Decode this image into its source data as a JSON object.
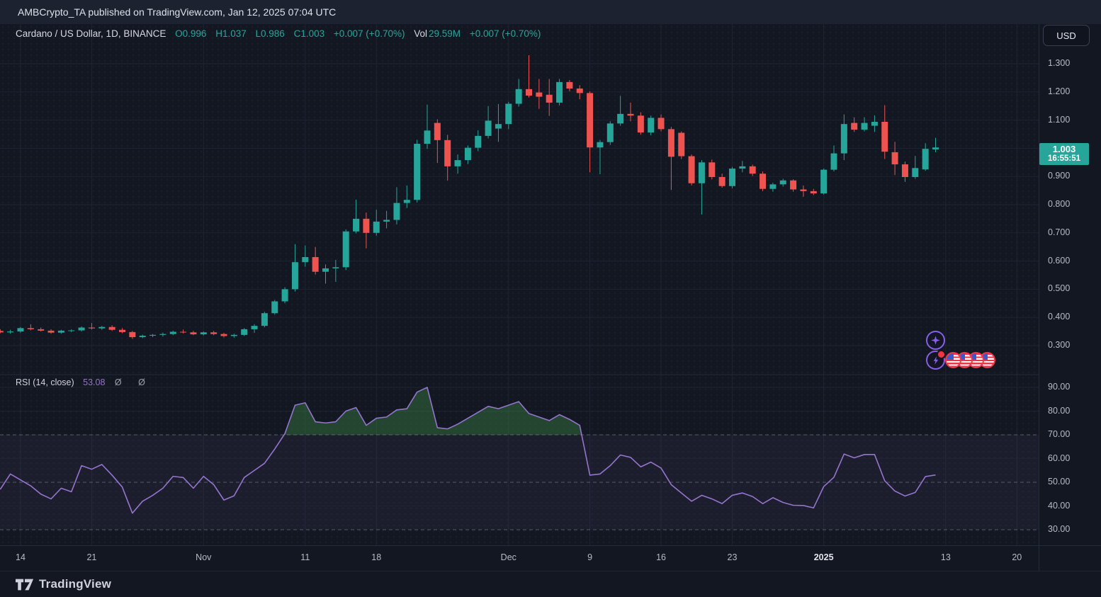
{
  "attribution": {
    "text": "AMBCrypto_TA published on TradingView.com, Jan 12, 2025 07:04 UTC"
  },
  "legend": {
    "symbol": "Cardano / US Dollar, 1D, BINANCE",
    "o_label": "O",
    "o": "0.996",
    "h_label": "H",
    "h": "1.037",
    "l_label": "L",
    "l": "0.986",
    "c_label": "C",
    "c": "1.003",
    "change": "+0.007 (+0.70%)",
    "vol_label": "Vol",
    "vol": "29.59M",
    "change2": "+0.007 (+0.70%)"
  },
  "price_axis": {
    "currency": "USD",
    "current_price": "1.003",
    "countdown": "16:55:51"
  },
  "rsi_legend": {
    "title": "RSI (14, close)",
    "value": "53.08",
    "markers": "Ø Ø"
  },
  "footer": {
    "brand": "TradingView"
  },
  "icons": {
    "pattern_button": "sparkle-icon",
    "events_button": "lightning-bolt-icon with red notification dot",
    "event_flags": "us-flag-icon"
  },
  "event_icons": {
    "count": 4,
    "type": "us-flag"
  },
  "colors": {
    "background": "#131722",
    "attribution_background": "#1c2230",
    "up": "#26a69a",
    "down": "#ef5350",
    "rsi_line": "#9575cd",
    "rsi_overbought_fill": "rgba(76,175,80,0.30)",
    "rsi_band_fill": "rgba(149,117,205,0.07)",
    "grid": "#1e2433",
    "dashed_level": "#8a8e9b",
    "axis_text": "#b7bbc7",
    "badge_background": "#26a69a",
    "accent_purple": "#8660e9",
    "event_ring_red": "#f23645"
  },
  "chart_data": [
    {
      "type": "candlestick",
      "title": "Cardano / US Dollar, 1D, BINANCE",
      "exchange": "BINANCE",
      "interval": "1D",
      "ylim": [
        0.28,
        1.35
      ],
      "grid": true,
      "price_ticks": [
        "1.300",
        "1.200",
        "1.100",
        "1.000",
        "0.900",
        "0.800",
        "0.700",
        "0.600",
        "0.500",
        "0.400",
        "0.300"
      ],
      "time_ticks": [
        {
          "label": "14",
          "i": 2
        },
        {
          "label": "21",
          "i": 9
        },
        {
          "label": "Nov",
          "i": 20
        },
        {
          "label": "11",
          "i": 30
        },
        {
          "label": "18",
          "i": 37
        },
        {
          "label": "Dec",
          "i": 50
        },
        {
          "label": "9",
          "i": 58
        },
        {
          "label": "16",
          "i": 65
        },
        {
          "label": "23",
          "i": 72
        },
        {
          "label": "2025",
          "i": 81,
          "bold": true
        },
        {
          "label": "13",
          "i": 93
        },
        {
          "label": "20",
          "i": 100
        }
      ],
      "candles": [
        [
          "Oct 12",
          0.352,
          0.358,
          0.344,
          0.347
        ],
        [
          "Oct 13",
          0.347,
          0.356,
          0.342,
          0.35
        ],
        [
          "Oct 14",
          0.35,
          0.366,
          0.346,
          0.362
        ],
        [
          "Oct 15",
          0.362,
          0.376,
          0.354,
          0.358
        ],
        [
          "Oct 16",
          0.358,
          0.364,
          0.35,
          0.353
        ],
        [
          "Oct 17",
          0.353,
          0.358,
          0.342,
          0.346
        ],
        [
          "Oct 18",
          0.346,
          0.356,
          0.342,
          0.353
        ],
        [
          "Oct 19",
          0.353,
          0.358,
          0.348,
          0.354
        ],
        [
          "Oct 20",
          0.354,
          0.368,
          0.35,
          0.364
        ],
        [
          "Oct 21",
          0.364,
          0.38,
          0.357,
          0.361
        ],
        [
          "Oct 22",
          0.361,
          0.37,
          0.356,
          0.366
        ],
        [
          "Oct 23",
          0.366,
          0.372,
          0.352,
          0.356
        ],
        [
          "Oct 24",
          0.356,
          0.362,
          0.344,
          0.348
        ],
        [
          "Oct 25",
          0.348,
          0.352,
          0.324,
          0.33
        ],
        [
          "Oct 26",
          0.33,
          0.339,
          0.326,
          0.335
        ],
        [
          "Oct 27",
          0.335,
          0.341,
          0.33,
          0.338
        ],
        [
          "Oct 28",
          0.338,
          0.346,
          0.332,
          0.341
        ],
        [
          "Oct 29",
          0.341,
          0.353,
          0.337,
          0.349
        ],
        [
          "Oct 30",
          0.349,
          0.357,
          0.343,
          0.347
        ],
        [
          "Oct 31",
          0.347,
          0.352,
          0.337,
          0.34
        ],
        [
          "Nov 1",
          0.34,
          0.35,
          0.336,
          0.347
        ],
        [
          "Nov 2",
          0.347,
          0.352,
          0.337,
          0.341
        ],
        [
          "Nov 3",
          0.341,
          0.345,
          0.329,
          0.334
        ],
        [
          "Nov 4",
          0.334,
          0.342,
          0.328,
          0.338
        ],
        [
          "Nov 5",
          0.338,
          0.362,
          0.334,
          0.358
        ],
        [
          "Nov 6",
          0.358,
          0.376,
          0.345,
          0.37
        ],
        [
          "Nov 7",
          0.37,
          0.42,
          0.365,
          0.415
        ],
        [
          "Nov 8",
          0.415,
          0.462,
          0.41,
          0.457
        ],
        [
          "Nov 9",
          0.457,
          0.507,
          0.45,
          0.5
        ],
        [
          "Nov 10",
          0.5,
          0.66,
          0.492,
          0.596
        ],
        [
          "Nov 11",
          0.596,
          0.655,
          0.58,
          0.614
        ],
        [
          "Nov 12",
          0.614,
          0.65,
          0.552,
          0.562
        ],
        [
          "Nov 13",
          0.562,
          0.588,
          0.52,
          0.574
        ],
        [
          "Nov 14",
          0.574,
          0.604,
          0.526,
          0.578
        ],
        [
          "Nov 15",
          0.578,
          0.712,
          0.568,
          0.705
        ],
        [
          "Nov 16",
          0.705,
          0.818,
          0.698,
          0.75
        ],
        [
          "Nov 17",
          0.75,
          0.772,
          0.645,
          0.7
        ],
        [
          "Nov 18",
          0.7,
          0.782,
          0.69,
          0.74
        ],
        [
          "Nov 19",
          0.74,
          0.778,
          0.716,
          0.746
        ],
        [
          "Nov 20",
          0.746,
          0.862,
          0.73,
          0.806
        ],
        [
          "Nov 21",
          0.806,
          0.868,
          0.788,
          0.817
        ],
        [
          "Nov 22",
          0.817,
          1.03,
          0.808,
          1.016
        ],
        [
          "Nov 23",
          1.016,
          1.155,
          0.998,
          1.063
        ],
        [
          "Nov 24",
          1.09,
          1.103,
          0.948,
          1.029
        ],
        [
          "Nov 25",
          1.029,
          1.048,
          0.885,
          0.936
        ],
        [
          "Nov 26",
          0.936,
          0.978,
          0.91,
          0.958
        ],
        [
          "Nov 27",
          0.958,
          1.01,
          0.944,
          1.002
        ],
        [
          "Nov 28",
          1.002,
          1.064,
          0.99,
          1.044
        ],
        [
          "Nov 29",
          1.044,
          1.15,
          1.035,
          1.098
        ],
        [
          "Nov 30",
          1.07,
          1.157,
          1.023,
          1.086
        ],
        [
          "Dec 1",
          1.086,
          1.165,
          1.068,
          1.158
        ],
        [
          "Dec 2",
          1.158,
          1.246,
          1.148,
          1.21
        ],
        [
          "Dec 3",
          1.21,
          1.33,
          1.18,
          1.187
        ],
        [
          "Dec 4",
          1.198,
          1.246,
          1.14,
          1.183
        ],
        [
          "Dec 5",
          1.19,
          1.246,
          1.115,
          1.162
        ],
        [
          "Dec 6",
          1.162,
          1.246,
          1.152,
          1.235
        ],
        [
          "Dec 7",
          1.235,
          1.242,
          1.202,
          1.212
        ],
        [
          "Dec 8",
          1.212,
          1.224,
          1.174,
          1.196
        ],
        [
          "Dec 9",
          1.196,
          1.202,
          0.915,
          1.003
        ],
        [
          "Dec 10",
          1.003,
          1.03,
          0.908,
          1.022
        ],
        [
          "Dec 11",
          1.022,
          1.096,
          1.012,
          1.088
        ],
        [
          "Dec 12",
          1.088,
          1.186,
          1.08,
          1.122
        ],
        [
          "Dec 13",
          1.122,
          1.162,
          1.096,
          1.116
        ],
        [
          "Dec 14",
          1.116,
          1.128,
          1.048,
          1.056
        ],
        [
          "Dec 15",
          1.056,
          1.116,
          1.046,
          1.108
        ],
        [
          "Dec 16",
          1.108,
          1.12,
          1.06,
          1.068
        ],
        [
          "Dec 17",
          1.068,
          1.076,
          0.852,
          0.97
        ],
        [
          "Dec 18",
          1.055,
          1.06,
          0.962,
          0.972
        ],
        [
          "Dec 19",
          0.972,
          0.978,
          0.868,
          0.876
        ],
        [
          "Dec 20",
          0.876,
          0.958,
          0.765,
          0.95
        ],
        [
          "Dec 21",
          0.95,
          0.96,
          0.89,
          0.898
        ],
        [
          "Dec 22",
          0.898,
          0.91,
          0.86,
          0.866
        ],
        [
          "Dec 23",
          0.866,
          0.934,
          0.858,
          0.928
        ],
        [
          "Dec 24",
          0.928,
          0.955,
          0.915,
          0.936
        ],
        [
          "Dec 25",
          0.936,
          0.942,
          0.902,
          0.91
        ],
        [
          "Dec 26",
          0.91,
          0.918,
          0.848,
          0.856
        ],
        [
          "Dec 27",
          0.856,
          0.878,
          0.846,
          0.872
        ],
        [
          "Dec 28",
          0.872,
          0.892,
          0.864,
          0.886
        ],
        [
          "Dec 29",
          0.886,
          0.89,
          0.846,
          0.854
        ],
        [
          "Dec 30",
          0.854,
          0.868,
          0.828,
          0.848
        ],
        [
          "Dec 31",
          0.848,
          0.856,
          0.834,
          0.84
        ],
        [
          "Jan 1",
          0.84,
          0.928,
          0.836,
          0.924
        ],
        [
          "Jan 2",
          0.924,
          1.01,
          0.918,
          0.982
        ],
        [
          "Jan 3",
          0.982,
          1.12,
          0.958,
          1.086
        ],
        [
          "Jan 4",
          1.09,
          1.11,
          1.058,
          1.066
        ],
        [
          "Jan 5",
          1.066,
          1.11,
          1.06,
          1.09
        ],
        [
          "Jan 6",
          1.08,
          1.117,
          1.058,
          1.094
        ],
        [
          "Jan 7",
          1.094,
          1.153,
          0.962,
          0.988
        ],
        [
          "Jan 8",
          0.986,
          1.023,
          0.905,
          0.943
        ],
        [
          "Jan 9",
          0.943,
          0.953,
          0.881,
          0.898
        ],
        [
          "Jan 10",
          0.898,
          0.973,
          0.892,
          0.93
        ],
        [
          "Jan 11",
          0.925,
          1.018,
          0.92,
          0.998
        ],
        [
          "Jan 12",
          0.996,
          1.037,
          0.986,
          1.003
        ]
      ]
    },
    {
      "type": "line",
      "name": "RSI (14, close)",
      "last_value": 53.08,
      "ylim": [
        25,
        95
      ],
      "ticks": [
        "90.00",
        "80.00",
        "70.00",
        "60.00",
        "50.00",
        "40.00",
        "30.00"
      ],
      "levels": {
        "overbought": 70,
        "middle": 50,
        "oversold": 30
      },
      "values": [
        47,
        53.5,
        51,
        48.5,
        45,
        43,
        47.5,
        46,
        57,
        55.5,
        57.5,
        53,
        48,
        37,
        42,
        44.5,
        47.5,
        52.5,
        52,
        47.5,
        52.5,
        49,
        42.5,
        44.3,
        52,
        55,
        58,
        64,
        70.5,
        82.5,
        83.5,
        75.5,
        75,
        75.5,
        80,
        81.5,
        74,
        77,
        77.5,
        80.5,
        81,
        88,
        90,
        73,
        72.5,
        74.5,
        77,
        79.5,
        82,
        81,
        82.5,
        84,
        79,
        77.5,
        76,
        78.5,
        76.5,
        74,
        53,
        53.5,
        57,
        61.5,
        60.5,
        56.5,
        58.5,
        56,
        49,
        45.5,
        42,
        44.5,
        43,
        41,
        44.5,
        45.5,
        44,
        41,
        43.5,
        41.5,
        40.3,
        40.2,
        39.2,
        48.2,
        52.1,
        61.9,
        60.3,
        61.7,
        61.7,
        50.6,
        46.3,
        44.2,
        45.7,
        52.4,
        53.08
      ]
    }
  ]
}
